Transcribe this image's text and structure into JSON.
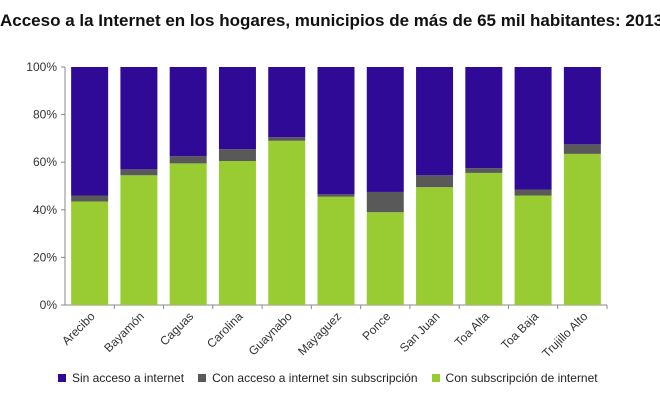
{
  "chart_data": {
    "type": "bar",
    "stacked": true,
    "title": "Acceso a la Internet en los hogares, municipios de más de 65 mil habitantes: 2013",
    "xlabel": "",
    "ylabel": "",
    "ylim": [
      0,
      100
    ],
    "yticks": [
      "0%",
      "20%",
      "40%",
      "60%",
      "80%",
      "100%"
    ],
    "grid": false,
    "legend_position": "bottom",
    "categories": [
      "Arecibo",
      "Bayamón",
      "Caguas",
      "Carolina",
      "Guaynabo",
      "Mayaguez",
      "Ponce",
      "San Juan",
      "Toa Alta",
      "Toa Baja",
      "Trujillo Alto"
    ],
    "series": [
      {
        "name": "Con subscripción de internet",
        "color": "#99cc33",
        "values": [
          43.5,
          54.5,
          59.5,
          60.5,
          69,
          45.5,
          39,
          49.5,
          55.5,
          46,
          63.5
        ]
      },
      {
        "name": "Con acceso a internet sin subscripción",
        "color": "#595959",
        "values": [
          2.5,
          2.5,
          3,
          5,
          1.5,
          1,
          8.5,
          5,
          2,
          2.5,
          4
        ]
      },
      {
        "name": "Sin acceso a internet",
        "color": "#2e0a96",
        "values": [
          54,
          43,
          37.5,
          34.5,
          29.5,
          53.5,
          52.5,
          45.5,
          42.5,
          51.5,
          32.5
        ]
      }
    ],
    "legend_order": [
      "Sin acceso a internet",
      "Con acceso a internet sin subscripción",
      "Con subscripción de internet"
    ]
  }
}
